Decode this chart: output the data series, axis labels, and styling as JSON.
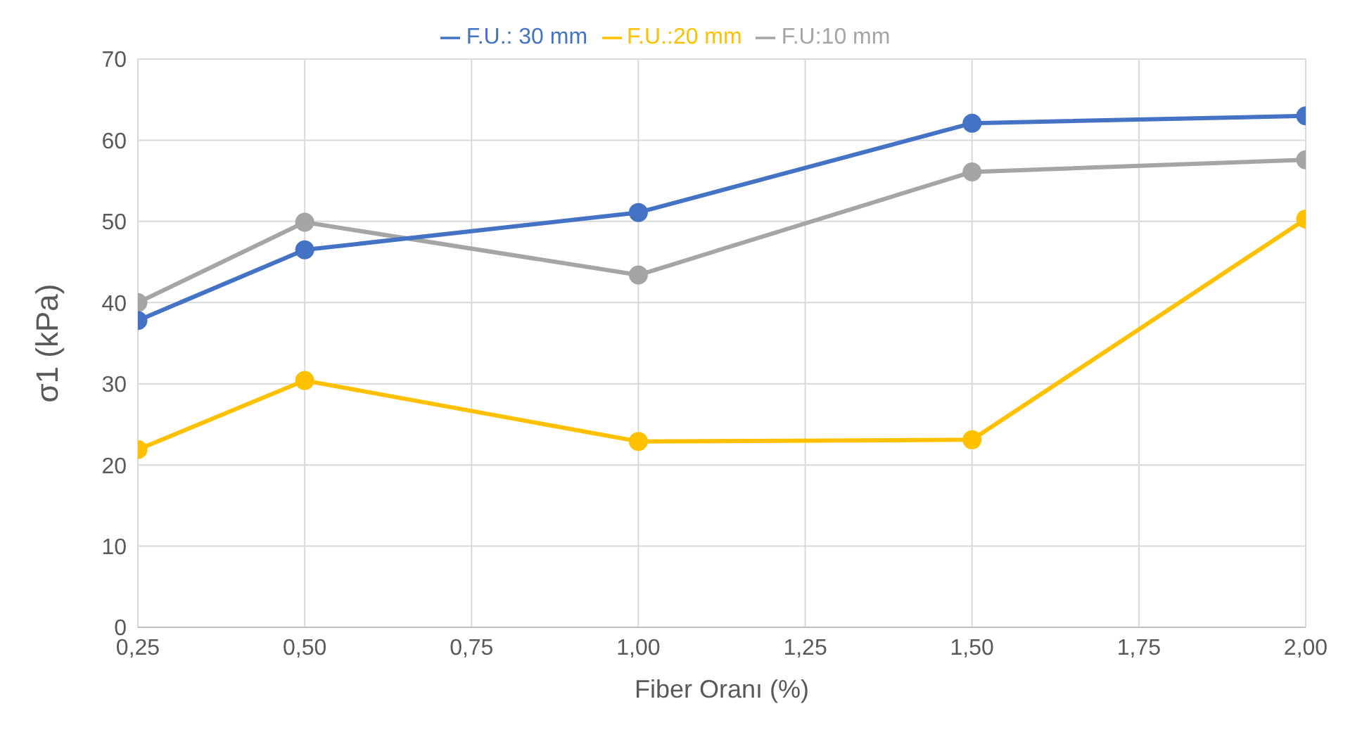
{
  "chart_data": {
    "type": "line",
    "xlabel": "Fiber Oranı (%)",
    "ylabel": "σ1 (kPa)",
    "x": [
      0.25,
      0.5,
      1.0,
      1.5,
      2.0
    ],
    "series": [
      {
        "name": "F.U:10 mm",
        "color": "#a5a5a5",
        "values": [
          40.0,
          49.9,
          43.4,
          56.1,
          57.6
        ]
      },
      {
        "name": "F.U.:20 mm",
        "color": "#ffc000",
        "values": [
          21.9,
          30.4,
          22.9,
          23.1,
          50.3
        ]
      },
      {
        "name": "F.U.: 30 mm",
        "color": "#4472c4",
        "values": [
          37.8,
          46.5,
          51.1,
          62.1,
          63.0
        ]
      }
    ],
    "xlim": [
      0.25,
      2.0
    ],
    "xticks": [
      {
        "value": 0.25,
        "label": "0,25"
      },
      {
        "value": 0.5,
        "label": "0,50"
      },
      {
        "value": 0.75,
        "label": "0,75"
      },
      {
        "value": 1.0,
        "label": "1,00"
      },
      {
        "value": 1.25,
        "label": "1,25"
      },
      {
        "value": 1.5,
        "label": "1,50"
      },
      {
        "value": 1.75,
        "label": "1,75"
      },
      {
        "value": 2.0,
        "label": "2,00"
      }
    ],
    "ylim": [
      0,
      70
    ],
    "yticks": [
      0,
      10,
      20,
      30,
      40,
      50,
      60,
      70
    ],
    "grid": true,
    "legend": "top",
    "marker": "circle",
    "line_style": "solid"
  }
}
